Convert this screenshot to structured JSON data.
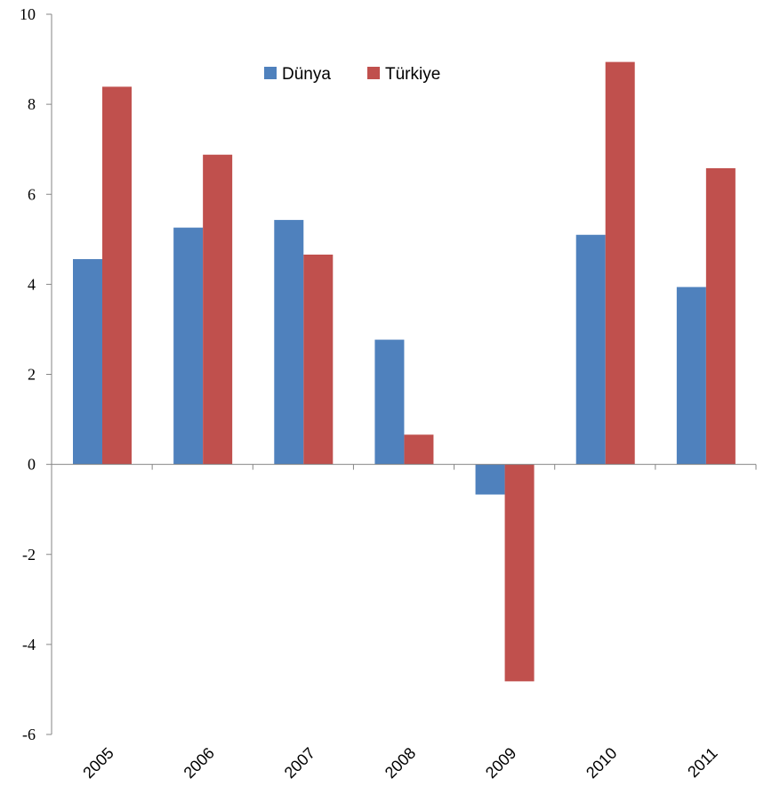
{
  "chart_data": {
    "type": "bar",
    "categories": [
      "2005",
      "2006",
      "2007",
      "2008",
      "2009",
      "2010",
      "2011"
    ],
    "series": [
      {
        "name": "Dünya",
        "color": "#4f81bd",
        "values": [
          4.56,
          5.26,
          5.43,
          2.77,
          -0.67,
          5.1,
          3.94
        ]
      },
      {
        "name": "Türkiye",
        "color": "#c0504d",
        "values": [
          8.39,
          6.88,
          4.66,
          0.66,
          -4.82,
          8.94,
          6.58
        ]
      }
    ],
    "title": "",
    "xlabel": "",
    "ylabel": "",
    "ylim": [
      -6,
      10
    ],
    "yticks": [
      "10",
      "8",
      "6",
      "4",
      "2",
      "0",
      "-2",
      "-4",
      "-6"
    ],
    "grid": false,
    "legend_position": "top"
  }
}
